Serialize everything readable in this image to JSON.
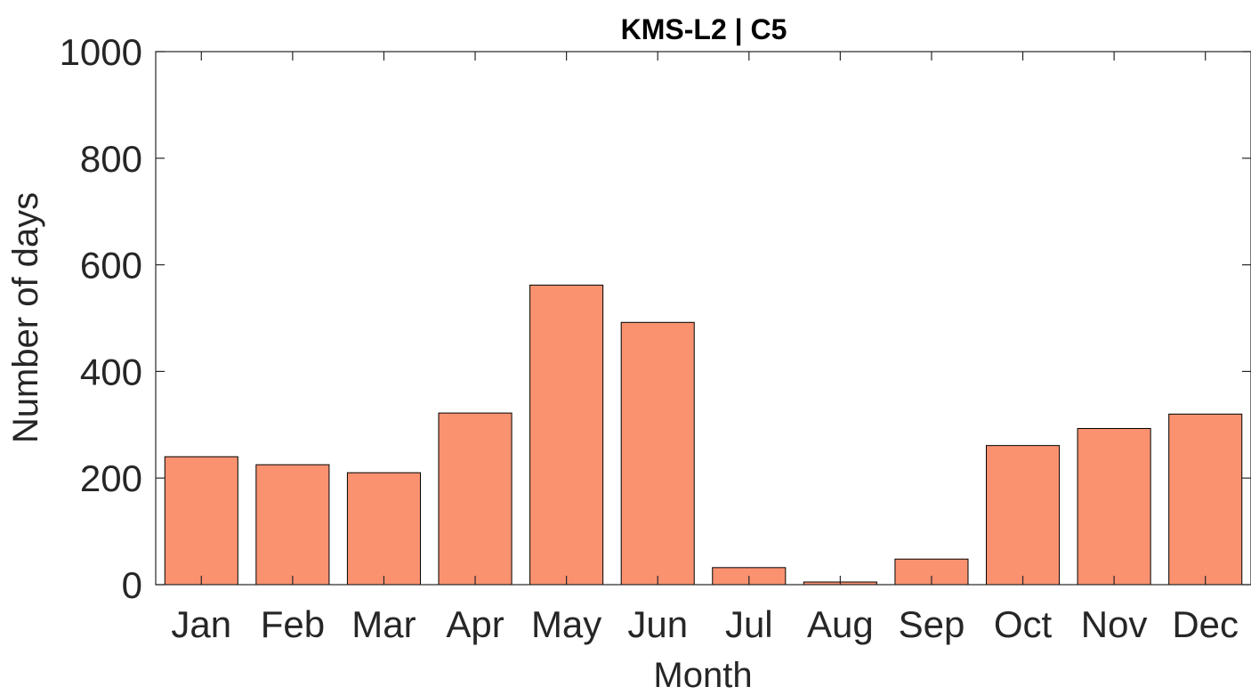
{
  "chart_data": {
    "type": "bar",
    "title": "KMS-L2 | C5",
    "xlabel": "Month",
    "ylabel": "Number of days",
    "categories": [
      "Jan",
      "Feb",
      "Mar",
      "Apr",
      "May",
      "Jun",
      "Jul",
      "Aug",
      "Sep",
      "Oct",
      "Nov",
      "Dec"
    ],
    "values": [
      240,
      225,
      210,
      322,
      562,
      492,
      32,
      5,
      48,
      261,
      293,
      320
    ],
    "ylim": [
      0,
      1000
    ],
    "yticks": [
      "0",
      "200",
      "400",
      "600",
      "800",
      "1000"
    ],
    "grid": false,
    "legend": "none",
    "colors": {
      "bar_fill": "#fa9270",
      "bar_edge": "#000000",
      "axis": "#262626"
    }
  }
}
